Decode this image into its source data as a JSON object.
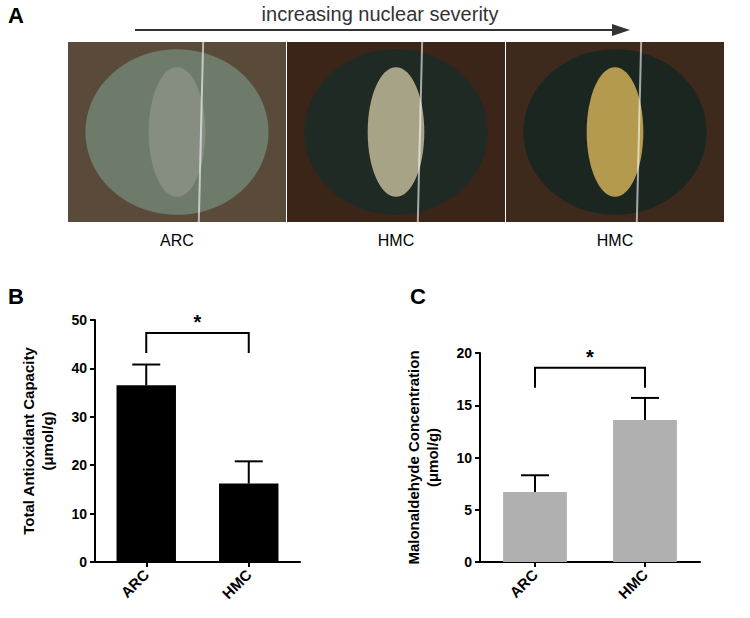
{
  "panel_a": {
    "title": "A",
    "arrow_label": "increasing nuclear severity",
    "images": [
      "ARC",
      "HMC",
      "HMC"
    ]
  },
  "chart_data": [
    {
      "type": "bar",
      "title": "B",
      "categories": [
        "ARC",
        "HMC"
      ],
      "values": [
        36.5,
        16.2
      ],
      "errors": [
        4.3,
        4.6
      ],
      "color": "#000000",
      "ylabel": "Total Antioxidant Capacity\n(μmol/g)",
      "ylim": [
        0,
        50
      ],
      "yticks": [
        0,
        10,
        20,
        30,
        40,
        50
      ],
      "grid": false,
      "annotations": [
        {
          "text": "*",
          "x": [
            "ARC",
            "HMC"
          ],
          "y": 47.3
        }
      ]
    },
    {
      "type": "bar",
      "title": "C",
      "categories": [
        "ARC",
        "HMC"
      ],
      "values": [
        6.7,
        13.6
      ],
      "errors": [
        1.6,
        2.1
      ],
      "color": "#b0b0b0",
      "ylabel": "Malonaldehyde Concentration\n(μmol/g)",
      "ylim": [
        0,
        20
      ],
      "yticks": [
        0,
        5,
        10,
        15,
        20
      ],
      "grid": false,
      "annotations": [
        {
          "text": "*",
          "x": [
            "ARC",
            "HMC"
          ],
          "y": 18.6
        }
      ]
    }
  ]
}
